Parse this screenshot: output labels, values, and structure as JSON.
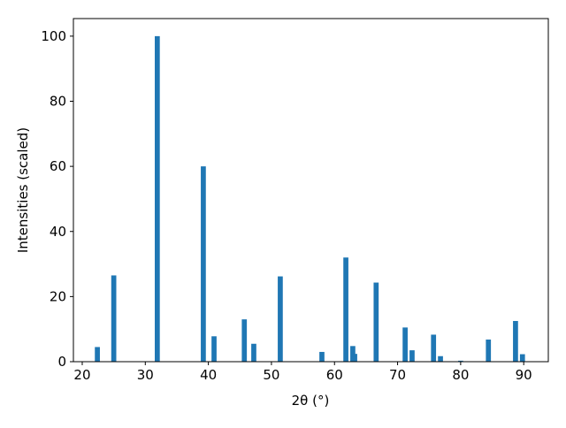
{
  "chart_data": {
    "type": "bar",
    "x_label": "2θ (°)",
    "y_label": "Intensities (scaled)",
    "x": [
      22.4,
      25.0,
      31.9,
      39.2,
      40.9,
      45.7,
      47.2,
      51.4,
      58.0,
      61.8,
      62.9,
      63.2,
      66.6,
      71.2,
      72.3,
      75.7,
      76.8,
      80.0,
      84.4,
      88.7,
      89.8
    ],
    "values": [
      4.5,
      26.5,
      100,
      60,
      7.8,
      13,
      5.5,
      26.2,
      3,
      32,
      4.8,
      2.4,
      24.3,
      10.5,
      3.5,
      8.3,
      1.7,
      0.3,
      6.8,
      12.5,
      2.3
    ],
    "color": "#1f77b4",
    "xlim": [
      18.6,
      93.9
    ],
    "xticks": [
      20,
      30,
      40,
      50,
      60,
      70,
      80,
      90
    ],
    "ylim": [
      0,
      105.4
    ],
    "yticks": [
      0,
      20,
      40,
      60,
      80,
      100
    ]
  }
}
